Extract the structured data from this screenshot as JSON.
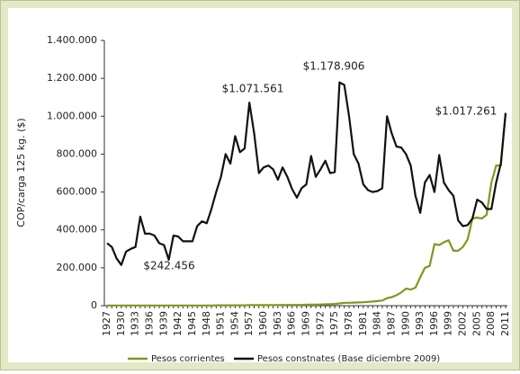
{
  "chart_data": {
    "type": "line",
    "y_label": "COP/carga 125 kg. ($)",
    "x": [
      1927,
      1928,
      1929,
      1930,
      1931,
      1932,
      1933,
      1934,
      1935,
      1936,
      1937,
      1938,
      1939,
      1940,
      1941,
      1942,
      1943,
      1944,
      1945,
      1946,
      1947,
      1948,
      1949,
      1950,
      1951,
      1952,
      1953,
      1954,
      1955,
      1956,
      1957,
      1958,
      1959,
      1960,
      1961,
      1962,
      1963,
      1964,
      1965,
      1966,
      1967,
      1968,
      1969,
      1970,
      1971,
      1972,
      1973,
      1974,
      1975,
      1976,
      1977,
      1978,
      1979,
      1980,
      1981,
      1982,
      1983,
      1984,
      1985,
      1986,
      1987,
      1988,
      1989,
      1990,
      1991,
      1992,
      1993,
      1994,
      1995,
      1996,
      1997,
      1998,
      1999,
      2000,
      2001,
      2002,
      2003,
      2004,
      2005,
      2006,
      2007,
      2008,
      2009,
      2010,
      2011
    ],
    "series": [
      {
        "name": "Pesos corrientes",
        "color": "#7d9a1e",
        "values": [
          1000,
          1000,
          1000,
          1000,
          1000,
          1000,
          1000,
          1000,
          1000,
          1000,
          1000,
          1000,
          1000,
          1000,
          1000,
          1000,
          1000,
          1000,
          1000,
          1000,
          1000,
          1000,
          1000,
          2000,
          2000,
          2000,
          2000,
          2000,
          2000,
          2000,
          3000,
          3000,
          3000,
          3000,
          3000,
          3000,
          3000,
          4000,
          4000,
          4000,
          4000,
          4000,
          5000,
          5000,
          5000,
          6000,
          7000,
          8000,
          9000,
          12000,
          15000,
          15000,
          16000,
          17000,
          18000,
          20000,
          22000,
          24000,
          27000,
          40000,
          45000,
          55000,
          70000,
          90000,
          85000,
          95000,
          150000,
          200000,
          210000,
          325000,
          320000,
          335000,
          345000,
          290000,
          290000,
          310000,
          350000,
          460000,
          465000,
          460000,
          480000,
          650000,
          740000,
          740000,
          1017261
        ]
      },
      {
        "name": "Pesos constnates (Base diciembre 2009)",
        "color": "#111111",
        "values": [
          330000,
          310000,
          250000,
          215000,
          285000,
          300000,
          310000,
          470000,
          380000,
          380000,
          370000,
          330000,
          320000,
          242456,
          370000,
          365000,
          340000,
          340000,
          340000,
          420000,
          445000,
          435000,
          510000,
          600000,
          680000,
          800000,
          750000,
          895000,
          810000,
          830000,
          1071561,
          910000,
          700000,
          730000,
          740000,
          720000,
          665000,
          730000,
          680000,
          615000,
          570000,
          620000,
          640000,
          790000,
          680000,
          720000,
          765000,
          700000,
          705000,
          1178906,
          1165000,
          1000000,
          800000,
          750000,
          640000,
          610000,
          600000,
          605000,
          620000,
          1000000,
          910000,
          840000,
          835000,
          800000,
          740000,
          580000,
          490000,
          650000,
          690000,
          600000,
          795000,
          650000,
          610000,
          580000,
          450000,
          420000,
          425000,
          460000,
          560000,
          545000,
          510000,
          510000,
          650000,
          750000,
          1017261
        ]
      }
    ],
    "annotations": [
      "$1.071.561",
      "$1.178.906",
      "$242.456",
      "$1.017.261"
    ],
    "xlim": [
      1927,
      2011
    ],
    "xticks": [
      1927,
      1930,
      1933,
      1936,
      1939,
      1942,
      1945,
      1948,
      1951,
      1954,
      1957,
      1960,
      1963,
      1966,
      1969,
      1972,
      1975,
      1978,
      1981,
      1984,
      1987,
      1990,
      1993,
      1996,
      1999,
      2002,
      2005,
      2008,
      2011
    ],
    "ylim": [
      0,
      1400000
    ],
    "yticks": [
      0,
      {
        "value": 200000,
        "label": "200.000"
      },
      {
        "value": 400000,
        "label": "400.000"
      },
      {
        "value": 600000,
        "label": "600.000"
      },
      {
        "value": 800000,
        "label": "800.000"
      },
      {
        "value": 1000000,
        "label": "1.000.000"
      },
      {
        "value": 1200000,
        "label": "1.200.000"
      },
      {
        "value": 1400000,
        "label": "1.400.000"
      }
    ],
    "legend": "bottom"
  }
}
